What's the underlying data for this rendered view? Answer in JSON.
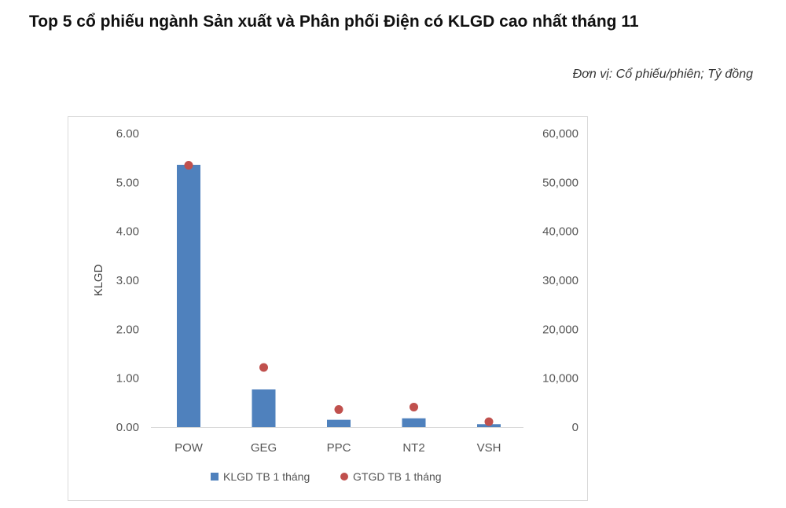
{
  "header": {
    "title": "Top 5 cổ phiếu ngành Sản xuất và Phân phối Điện có KLGD cao nhất tháng 11",
    "unit_note": "Đơn vị: Cổ phiếu/phiên; Tỷ đồng"
  },
  "colors": {
    "bar": "#4f81bd",
    "dot": "#c0504d",
    "frame": "#d9d9d9"
  },
  "chart_data": {
    "type": "bar",
    "categories": [
      "POW",
      "GEG",
      "PPC",
      "NT2",
      "VSH"
    ],
    "series": [
      {
        "name": "KLGD TB 1 tháng",
        "type": "bar",
        "axis": "left",
        "values": [
          5.36,
          0.77,
          0.15,
          0.18,
          0.06
        ]
      },
      {
        "name": "GTGD TB 1 tháng",
        "type": "scatter",
        "axis": "right",
        "values": [
          53500,
          12200,
          3600,
          4100,
          1100
        ]
      }
    ],
    "ylabel": "KLGD",
    "ylim": [
      0,
      6
    ],
    "yticks": [
      "0.00",
      "1.00",
      "2.00",
      "3.00",
      "4.00",
      "5.00",
      "6.00"
    ],
    "y2lim": [
      0,
      60000
    ],
    "y2ticks": [
      "0",
      "10,000",
      "20,000",
      "30,000",
      "40,000",
      "50,000",
      "60,000"
    ],
    "grid": false,
    "legend_position": "bottom"
  }
}
